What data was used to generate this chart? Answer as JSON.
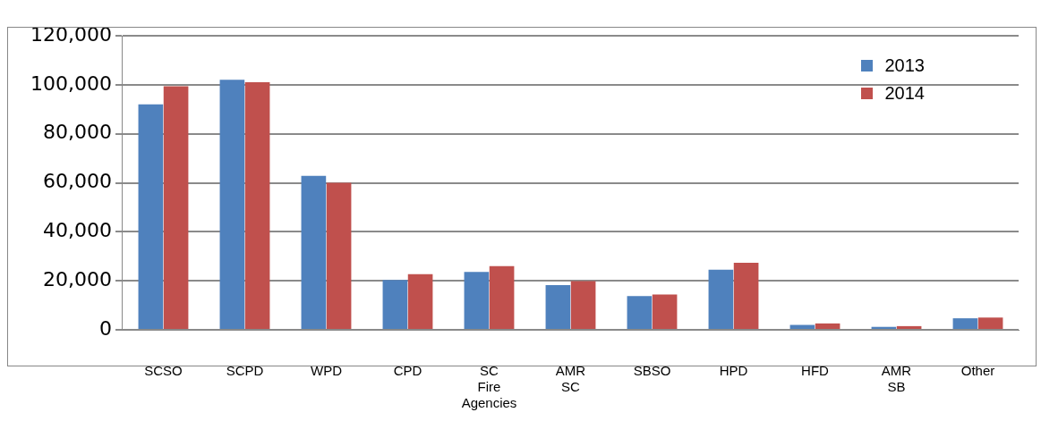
{
  "chart_data": {
    "type": "bar",
    "categories": [
      "SCSO",
      "SCPD",
      "WPD",
      "CPD",
      "SC Fire Agencies",
      "AMR SC",
      "SBSO",
      "HPD",
      "HFD",
      "AMR SB",
      "Other"
    ],
    "series": [
      {
        "name": "2013",
        "color": "#4f81bd",
        "values": [
          92000,
          102000,
          62800,
          20300,
          23600,
          18200,
          13800,
          24500,
          2000,
          1200,
          4700
        ]
      },
      {
        "name": "2014",
        "color": "#c0504d",
        "values": [
          99400,
          101000,
          60000,
          22700,
          26000,
          19900,
          14400,
          27400,
          2600,
          1500,
          5000
        ]
      }
    ],
    "ylim": [
      0,
      120000
    ],
    "yticks": [
      {
        "value": 0,
        "label": "0"
      },
      {
        "value": 20000,
        "label": "20,000"
      },
      {
        "value": 40000,
        "label": "40,000"
      },
      {
        "value": 60000,
        "label": "60,000"
      },
      {
        "value": 80000,
        "label": "80,000"
      },
      {
        "value": 100000,
        "label": "100,000"
      },
      {
        "value": 120000,
        "label": "120,000"
      }
    ],
    "grid": "y",
    "legend": "top right"
  }
}
